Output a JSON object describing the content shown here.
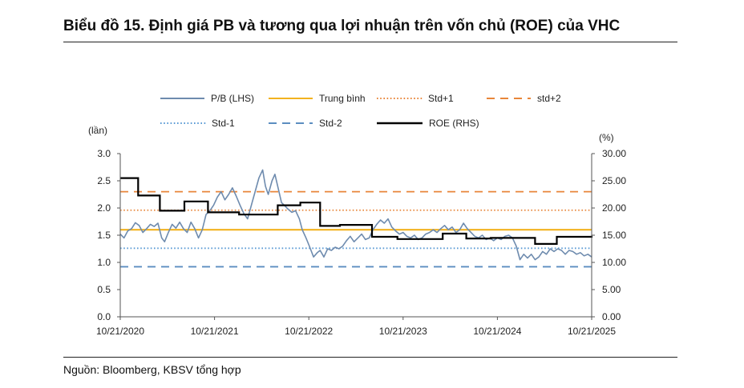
{
  "title": "Biểu đồ 15. Định giá PB và tương qua lợi nhuận trên vốn chủ (ROE) của VHC",
  "source": "Nguồn: Bloomberg, KBSV tổng hợp",
  "chart_data": {
    "type": "line",
    "left_axis": {
      "unit": "(lần)",
      "ylim": [
        0,
        3.0
      ],
      "ticks": [
        "0.0",
        "0.5",
        "1.0",
        "1.5",
        "2.0",
        "2.5",
        "3.0"
      ]
    },
    "right_axis": {
      "unit": "(%)",
      "ylim": [
        0,
        30
      ],
      "ticks": [
        "0.00",
        "5.00",
        "10.00",
        "15.00",
        "20.00",
        "25.00",
        "30.00"
      ]
    },
    "x_ticks": [
      "10/21/2020",
      "10/21/2021",
      "10/21/2022",
      "10/21/2023",
      "10/21/2024",
      "10/21/2025"
    ],
    "x_range": [
      2020.8,
      2025.8
    ],
    "grid": false,
    "legend_position": "top",
    "legend": [
      {
        "name": "P/B (LHS)",
        "color": "#6E8BAE",
        "style": "solid"
      },
      {
        "name": "Trung bình",
        "color": "#F2B21F",
        "style": "solid"
      },
      {
        "name": "Std+1",
        "color": "#E8863A",
        "style": "dotted"
      },
      {
        "name": "std+2",
        "color": "#E8863A",
        "style": "dashed"
      },
      {
        "name": "Std-1",
        "color": "#5B9BD5",
        "style": "dotted"
      },
      {
        "name": "Std-2",
        "color": "#5B8DC0",
        "style": "dashed"
      },
      {
        "name": "ROE (RHS)",
        "color": "#000000",
        "style": "solid"
      }
    ],
    "reference_lines": {
      "Trung bình": 1.6,
      "Std+1": 1.96,
      "std+2": 2.3,
      "Std-1": 1.26,
      "Std-2": 0.92
    },
    "pb_series": [
      [
        2020.8,
        1.52
      ],
      [
        2020.84,
        1.45
      ],
      [
        2020.88,
        1.58
      ],
      [
        2020.92,
        1.62
      ],
      [
        2020.96,
        1.73
      ],
      [
        2021.0,
        1.68
      ],
      [
        2021.04,
        1.55
      ],
      [
        2021.08,
        1.62
      ],
      [
        2021.12,
        1.7
      ],
      [
        2021.16,
        1.66
      ],
      [
        2021.2,
        1.72
      ],
      [
        2021.24,
        1.45
      ],
      [
        2021.27,
        1.38
      ],
      [
        2021.31,
        1.55
      ],
      [
        2021.35,
        1.7
      ],
      [
        2021.39,
        1.63
      ],
      [
        2021.43,
        1.74
      ],
      [
        2021.47,
        1.62
      ],
      [
        2021.51,
        1.55
      ],
      [
        2021.55,
        1.74
      ],
      [
        2021.59,
        1.62
      ],
      [
        2021.63,
        1.45
      ],
      [
        2021.67,
        1.6
      ],
      [
        2021.71,
        1.88
      ],
      [
        2021.75,
        1.95
      ],
      [
        2021.79,
        2.05
      ],
      [
        2021.83,
        2.2
      ],
      [
        2021.87,
        2.3
      ],
      [
        2021.91,
        2.15
      ],
      [
        2021.95,
        2.25
      ],
      [
        2021.99,
        2.37
      ],
      [
        2022.03,
        2.22
      ],
      [
        2022.07,
        2.05
      ],
      [
        2022.11,
        1.9
      ],
      [
        2022.15,
        1.8
      ],
      [
        2022.19,
        2.05
      ],
      [
        2022.23,
        2.3
      ],
      [
        2022.27,
        2.55
      ],
      [
        2022.31,
        2.7
      ],
      [
        2022.34,
        2.4
      ],
      [
        2022.37,
        2.25
      ],
      [
        2022.41,
        2.5
      ],
      [
        2022.44,
        2.62
      ],
      [
        2022.47,
        2.4
      ],
      [
        2022.51,
        2.1
      ],
      [
        2022.54,
        2.05
      ],
      [
        2022.58,
        1.98
      ],
      [
        2022.62,
        1.92
      ],
      [
        2022.66,
        1.95
      ],
      [
        2022.7,
        1.8
      ],
      [
        2022.73,
        1.6
      ],
      [
        2022.77,
        1.45
      ],
      [
        2022.81,
        1.28
      ],
      [
        2022.85,
        1.1
      ],
      [
        2022.89,
        1.18
      ],
      [
        2022.92,
        1.22
      ],
      [
        2022.96,
        1.1
      ],
      [
        2023.0,
        1.25
      ],
      [
        2023.04,
        1.22
      ],
      [
        2023.08,
        1.28
      ],
      [
        2023.12,
        1.25
      ],
      [
        2023.16,
        1.3
      ],
      [
        2023.2,
        1.4
      ],
      [
        2023.24,
        1.48
      ],
      [
        2023.28,
        1.38
      ],
      [
        2023.32,
        1.45
      ],
      [
        2023.36,
        1.52
      ],
      [
        2023.4,
        1.42
      ],
      [
        2023.44,
        1.45
      ],
      [
        2023.48,
        1.6
      ],
      [
        2023.52,
        1.7
      ],
      [
        2023.56,
        1.78
      ],
      [
        2023.6,
        1.72
      ],
      [
        2023.64,
        1.8
      ],
      [
        2023.68,
        1.65
      ],
      [
        2023.72,
        1.58
      ],
      [
        2023.76,
        1.52
      ],
      [
        2023.8,
        1.55
      ],
      [
        2023.84,
        1.48
      ],
      [
        2023.88,
        1.45
      ],
      [
        2023.92,
        1.5
      ],
      [
        2023.96,
        1.42
      ],
      [
        2024.0,
        1.45
      ],
      [
        2024.04,
        1.52
      ],
      [
        2024.08,
        1.55
      ],
      [
        2024.12,
        1.6
      ],
      [
        2024.16,
        1.55
      ],
      [
        2024.2,
        1.62
      ],
      [
        2024.24,
        1.68
      ],
      [
        2024.28,
        1.6
      ],
      [
        2024.32,
        1.65
      ],
      [
        2024.36,
        1.55
      ],
      [
        2024.4,
        1.6
      ],
      [
        2024.44,
        1.72
      ],
      [
        2024.48,
        1.62
      ],
      [
        2024.52,
        1.55
      ],
      [
        2024.56,
        1.48
      ],
      [
        2024.6,
        1.45
      ],
      [
        2024.64,
        1.5
      ],
      [
        2024.68,
        1.42
      ],
      [
        2024.72,
        1.45
      ],
      [
        2024.76,
        1.4
      ],
      [
        2024.8,
        1.45
      ],
      [
        2024.84,
        1.42
      ],
      [
        2024.88,
        1.48
      ],
      [
        2024.92,
        1.5
      ],
      [
        2024.96,
        1.45
      ],
      [
        2025.0,
        1.3
      ],
      [
        2025.04,
        1.05
      ],
      [
        2025.08,
        1.15
      ],
      [
        2025.12,
        1.08
      ],
      [
        2025.16,
        1.15
      ],
      [
        2025.2,
        1.05
      ],
      [
        2025.24,
        1.1
      ],
      [
        2025.28,
        1.2
      ],
      [
        2025.32,
        1.15
      ],
      [
        2025.36,
        1.25
      ],
      [
        2025.4,
        1.2
      ],
      [
        2025.44,
        1.25
      ],
      [
        2025.48,
        1.22
      ],
      [
        2025.52,
        1.15
      ],
      [
        2025.56,
        1.22
      ],
      [
        2025.6,
        1.2
      ],
      [
        2025.64,
        1.15
      ],
      [
        2025.68,
        1.18
      ],
      [
        2025.72,
        1.12
      ],
      [
        2025.76,
        1.15
      ],
      [
        2025.8,
        1.1
      ]
    ],
    "roe_steps": [
      [
        2020.8,
        25.5
      ],
      [
        2020.99,
        22.3
      ],
      [
        2021.22,
        19.5
      ],
      [
        2021.48,
        21.2
      ],
      [
        2021.73,
        19.2
      ],
      [
        2022.06,
        18.8
      ],
      [
        2022.47,
        20.5
      ],
      [
        2022.71,
        21.0
      ],
      [
        2022.92,
        16.7
      ],
      [
        2023.13,
        16.9
      ],
      [
        2023.47,
        14.7
      ],
      [
        2023.74,
        14.3
      ],
      [
        2024.22,
        15.3
      ],
      [
        2024.47,
        14.4
      ],
      [
        2024.73,
        14.5
      ],
      [
        2025.2,
        13.4
      ],
      [
        2025.43,
        14.7
      ],
      [
        2025.8,
        14.9
      ]
    ]
  }
}
